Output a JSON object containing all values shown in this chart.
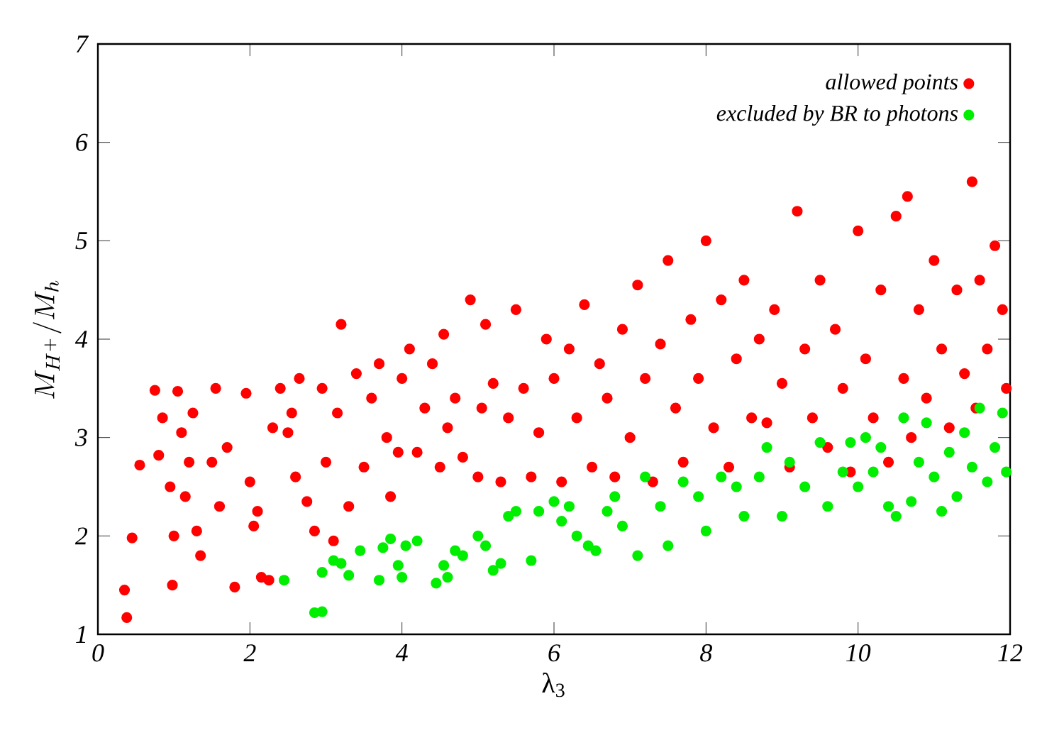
{
  "chart_data": {
    "type": "scatter",
    "xlabel": "λ$_{3}$",
    "ylabel": "M_{H^+} / M_h",
    "xlim": [
      0,
      12
    ],
    "xticks": [
      0,
      2,
      4,
      6,
      8,
      10,
      12
    ],
    "ylim": [
      1,
      7
    ],
    "yticks": [
      1,
      2,
      3,
      4,
      5,
      6,
      7
    ],
    "grid": false,
    "legend": "top right",
    "marker": "circle",
    "series": [
      {
        "name": "allowed points",
        "color": "#ff0000",
        "x": [
          0.35,
          0.38,
          0.45,
          0.55,
          0.75,
          0.8,
          0.85,
          0.95,
          0.98,
          1.0,
          1.05,
          1.1,
          1.15,
          1.2,
          1.25,
          1.3,
          1.35,
          1.5,
          1.55,
          1.6,
          1.7,
          1.8,
          1.95,
          2.0,
          2.05,
          2.1,
          2.15,
          2.25,
          2.3,
          2.4,
          2.5,
          2.55,
          2.6,
          2.65,
          2.75,
          2.85,
          2.95,
          3.0,
          3.1,
          3.15,
          3.2,
          3.3,
          3.4,
          3.5,
          3.6,
          3.7,
          3.8,
          3.85,
          3.95,
          4.0,
          4.1,
          4.2,
          4.3,
          4.4,
          4.5,
          4.55,
          4.6,
          4.7,
          4.8,
          4.9,
          5.0,
          5.05,
          5.1,
          5.2,
          5.3,
          5.4,
          5.5,
          5.6,
          5.7,
          5.8,
          5.9,
          6.0,
          6.1,
          6.2,
          6.3,
          6.4,
          6.5,
          6.6,
          6.7,
          6.8,
          6.9,
          7.0,
          7.1,
          7.2,
          7.3,
          7.4,
          7.5,
          7.6,
          7.7,
          7.8,
          7.9,
          8.0,
          8.1,
          8.2,
          8.3,
          8.4,
          8.5,
          8.6,
          8.7,
          8.8,
          8.9,
          9.0,
          9.1,
          9.2,
          9.3,
          9.4,
          9.5,
          9.6,
          9.7,
          9.8,
          9.9,
          10.0,
          10.1,
          10.2,
          10.3,
          10.4,
          10.5,
          10.6,
          10.65,
          10.7,
          10.8,
          10.9,
          11.0,
          11.1,
          11.2,
          11.3,
          11.4,
          11.5,
          11.55,
          11.6,
          11.7,
          11.8,
          11.9,
          11.95
        ],
        "values": [
          1.45,
          1.17,
          1.98,
          2.72,
          3.48,
          2.82,
          3.2,
          2.5,
          1.5,
          2.0,
          3.47,
          3.05,
          2.4,
          2.75,
          3.25,
          2.05,
          1.8,
          2.75,
          3.5,
          2.3,
          2.9,
          1.48,
          3.45,
          2.55,
          2.1,
          2.25,
          1.58,
          1.55,
          3.1,
          3.5,
          3.05,
          3.25,
          2.6,
          3.6,
          2.35,
          2.05,
          3.5,
          2.75,
          1.95,
          3.25,
          4.15,
          2.3,
          3.65,
          2.7,
          3.4,
          3.75,
          3.0,
          2.4,
          2.85,
          3.6,
          3.9,
          2.85,
          3.3,
          3.75,
          2.7,
          4.05,
          3.1,
          3.4,
          2.8,
          4.4,
          2.6,
          3.3,
          4.15,
          3.55,
          2.55,
          3.2,
          4.3,
          3.5,
          2.6,
          3.05,
          4.0,
          3.6,
          2.55,
          3.9,
          3.2,
          4.35,
          2.7,
          3.75,
          3.4,
          2.6,
          4.1,
          3.0,
          4.55,
          3.6,
          2.55,
          3.95,
          4.8,
          3.3,
          2.75,
          4.2,
          3.6,
          5.0,
          3.1,
          4.4,
          2.7,
          3.8,
          4.6,
          3.2,
          4.0,
          3.15,
          4.3,
          3.55,
          2.7,
          5.3,
          3.9,
          3.2,
          4.6,
          2.9,
          4.1,
          3.5,
          2.65,
          5.1,
          3.8,
          3.2,
          4.5,
          2.75,
          5.25,
          3.6,
          5.45,
          3.0,
          4.3,
          3.4,
          4.8,
          3.9,
          3.1,
          4.5,
          3.65,
          5.6,
          3.3,
          4.6,
          3.9,
          4.95,
          4.3,
          3.5
        ]
      },
      {
        "name": "excluded by BR to photons",
        "color": "#00ee00",
        "x": [
          2.45,
          2.85,
          2.95,
          2.95,
          3.1,
          3.2,
          3.3,
          3.45,
          3.7,
          3.75,
          3.85,
          3.95,
          4.0,
          4.05,
          4.2,
          4.45,
          4.55,
          4.6,
          4.7,
          4.8,
          5.0,
          5.1,
          5.2,
          5.3,
          5.4,
          5.5,
          5.7,
          5.8,
          6.0,
          6.1,
          6.2,
          6.3,
          6.45,
          6.55,
          6.7,
          6.8,
          6.9,
          7.1,
          7.2,
          7.4,
          7.5,
          7.7,
          7.9,
          8.0,
          8.2,
          8.4,
          8.5,
          8.7,
          8.8,
          9.0,
          9.1,
          9.3,
          9.5,
          9.6,
          9.8,
          9.9,
          10.0,
          10.1,
          10.2,
          10.3,
          10.4,
          10.5,
          10.6,
          10.7,
          10.8,
          10.9,
          11.0,
          11.1,
          11.2,
          11.3,
          11.4,
          11.5,
          11.6,
          11.7,
          11.8,
          11.9,
          11.95
        ],
        "values": [
          1.55,
          1.22,
          1.23,
          1.63,
          1.75,
          1.72,
          1.6,
          1.85,
          1.55,
          1.88,
          1.97,
          1.7,
          1.58,
          1.9,
          1.95,
          1.52,
          1.7,
          1.58,
          1.85,
          1.8,
          2.0,
          1.9,
          1.65,
          1.72,
          2.2,
          2.25,
          1.75,
          2.25,
          2.35,
          2.15,
          2.3,
          2.0,
          1.9,
          1.85,
          2.25,
          2.4,
          2.1,
          1.8,
          2.6,
          2.3,
          1.9,
          2.55,
          2.4,
          2.05,
          2.6,
          2.5,
          2.2,
          2.6,
          2.9,
          2.2,
          2.75,
          2.5,
          2.95,
          2.3,
          2.65,
          2.95,
          2.5,
          3.0,
          2.65,
          2.9,
          2.3,
          2.2,
          3.2,
          2.35,
          2.75,
          3.15,
          2.6,
          2.25,
          2.85,
          2.4,
          3.05,
          2.7,
          3.3,
          2.55,
          2.9,
          3.25,
          2.65
        ]
      }
    ]
  }
}
